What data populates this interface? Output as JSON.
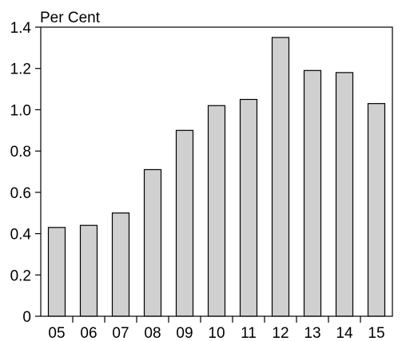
{
  "chart_data": {
    "type": "bar",
    "title": "",
    "ylabel": "Per Cent",
    "xlabel": "",
    "categories": [
      "05",
      "06",
      "07",
      "08",
      "09",
      "10",
      "11",
      "12",
      "13",
      "14",
      "15"
    ],
    "values": [
      0.43,
      0.44,
      0.5,
      0.71,
      0.9,
      1.02,
      1.05,
      1.35,
      1.19,
      1.18,
      1.03
    ],
    "ylim": [
      0,
      1.4
    ],
    "yticks": [
      "0",
      "0.2",
      "0.4",
      "0.6",
      "0.8",
      "1.0",
      "1.2",
      "1.4"
    ],
    "grid": false,
    "bar_color": "#d0d0d0",
    "edge_color": "#000000"
  }
}
